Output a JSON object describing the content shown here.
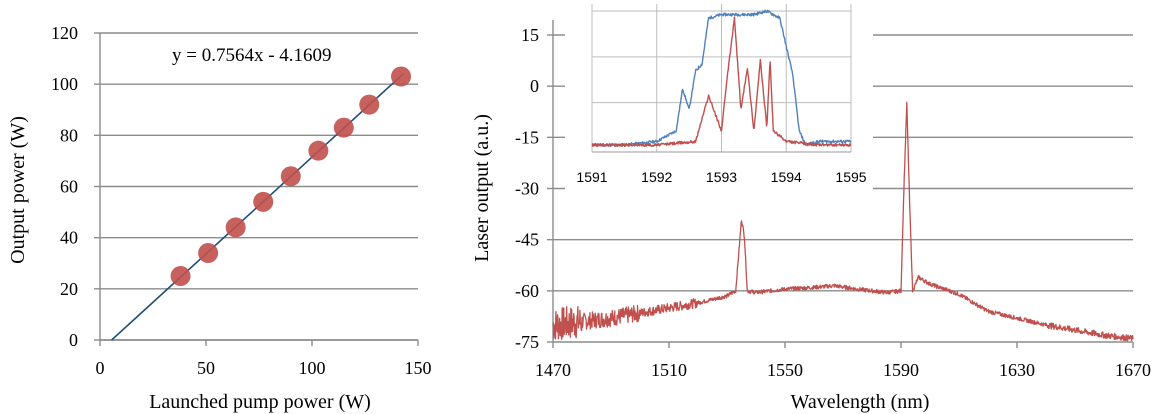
{
  "chart_data": [
    {
      "type": "scatter",
      "xlabel": "Launched pump power (W)",
      "ylabel": "Output power (W)",
      "xlim": [
        0,
        150
      ],
      "ylim": [
        0,
        120
      ],
      "xticks": [
        "0",
        "50",
        "100",
        "150"
      ],
      "yticks": [
        "0",
        "20",
        "40",
        "60",
        "80",
        "100",
        "120"
      ],
      "grid": "horizontal",
      "series": [
        {
          "color": "#c0504d",
          "x": [
            38,
            51,
            64,
            77,
            90,
            103,
            115,
            127,
            142
          ],
          "y": [
            25,
            34,
            44,
            54,
            64,
            74,
            83,
            92,
            103
          ]
        }
      ],
      "trendline": {
        "slope": 0.7564,
        "intercept": -4.1609,
        "color": "#1f4e79",
        "label": "y = 0.7564x - 4.1609"
      }
    },
    {
      "type": "line",
      "xlabel": "Wavelength (nm)",
      "ylabel": "Laser output (a.u.)",
      "xlim": [
        1470,
        1670
      ],
      "ylim": [
        -75,
        20
      ],
      "xticks": [
        "1470",
        "1510",
        "1550",
        "1590",
        "1630",
        "1670"
      ],
      "yticks": [
        "15",
        "0",
        "-15",
        "-30",
        "-45",
        "-60",
        "-75"
      ],
      "grid": "horizontal",
      "series": [
        {
          "color": "#c0504d",
          "x": [
            1470,
            1480,
            1490,
            1500,
            1510,
            1520,
            1530,
            1533,
            1535,
            1536,
            1537,
            1540,
            1550,
            1560,
            1567,
            1575,
            1585,
            1590,
            1591,
            1592,
            1593,
            1594,
            1596,
            1600,
            1610,
            1620,
            1630,
            1640,
            1650,
            1660,
            1670
          ],
          "y": [
            -70,
            -69,
            -68,
            -66.5,
            -65,
            -63.5,
            -61.5,
            -60,
            -39,
            -44,
            -60,
            -60.5,
            -59.5,
            -59,
            -58.5,
            -59.5,
            -60.5,
            -60,
            -30,
            -5,
            -35,
            -60,
            -56,
            -58,
            -61,
            -66,
            -68,
            -70,
            -71.5,
            -73,
            -74
          ]
        }
      ],
      "inset": {
        "xlim": [
          1591,
          1595
        ],
        "ylim": [
          -20,
          22
        ],
        "xticks": [
          "1591",
          "1592",
          "1593",
          "1594",
          "1595"
        ],
        "series": [
          {
            "color": "#4f81bd",
            "x": [
              1591,
              1591.5,
              1592,
              1592.3,
              1592.4,
              1592.5,
              1592.6,
              1592.7,
              1592.8,
              1593,
              1593.2,
              1593.5,
              1593.7,
              1593.9,
              1594,
              1594.1,
              1594.2,
              1594.3,
              1594.5,
              1595
            ],
            "y": [
              -18,
              -18,
              -17,
              -14,
              -2,
              -8,
              3,
              5,
              18,
              19,
              19,
              19,
              20,
              18,
              10,
              2,
              -14,
              -18,
              -17,
              -17
            ]
          },
          {
            "color": "#c0504d",
            "x": [
              1591,
              1592,
              1592.6,
              1592.8,
              1593,
              1593.1,
              1593.2,
              1593.3,
              1593.4,
              1593.5,
              1593.6,
              1593.7,
              1593.75,
              1593.8,
              1594,
              1594.5,
              1595
            ],
            "y": [
              -18,
              -18,
              -17,
              -4,
              -14,
              3,
              18,
              -8,
              4,
              -14,
              6,
              -13,
              6,
              -14,
              -17,
              -18,
              -18
            ]
          }
        ]
      }
    }
  ]
}
